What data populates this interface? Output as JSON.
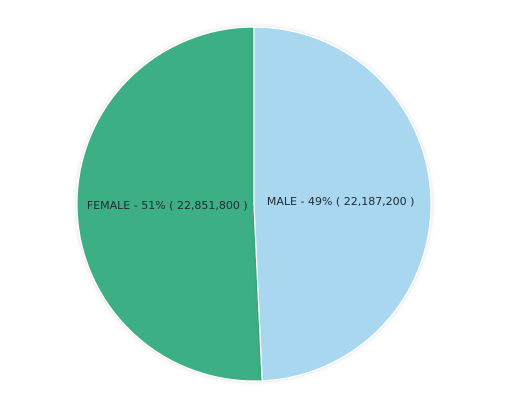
{
  "chart_data": {
    "type": "pie",
    "slices": [
      {
        "name": "FEMALE",
        "value": 22851800,
        "percent": 51,
        "label": "FEMALE - 51% ( 22,851,800 )",
        "color": "#3caf85"
      },
      {
        "name": "MALE",
        "value": 22187200,
        "percent": 49,
        "label": "MALE - 49% ( 22,187,200 )",
        "color": "#a9d7f0"
      }
    ],
    "legend": "none",
    "label_position": "inside"
  }
}
